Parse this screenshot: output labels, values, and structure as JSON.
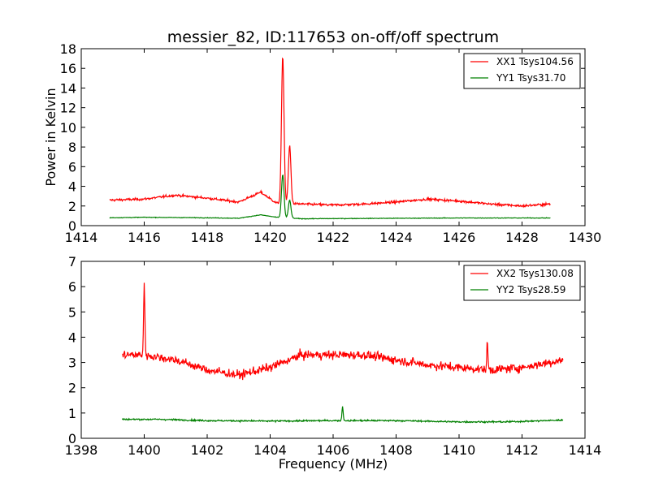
{
  "chart_data": [
    {
      "type": "line",
      "title": "messier_82, ID:117653 on-off/off spectrum",
      "xlabel": "",
      "ylabel": "Power in Kelvin",
      "xlim": [
        1414,
        1430
      ],
      "ylim": [
        0,
        18
      ],
      "xticks": [
        1414,
        1416,
        1418,
        1420,
        1422,
        1424,
        1426,
        1428,
        1430
      ],
      "yticks": [
        0,
        2,
        4,
        6,
        8,
        10,
        12,
        14,
        16,
        18
      ],
      "grid": false,
      "legend": "top-right",
      "series": [
        {
          "name": "XX1 Tsys104.56",
          "color": "#ff0000",
          "x_range": [
            1414.9,
            1428.9
          ],
          "baseline": [
            [
              1414.9,
              2.6
            ],
            [
              1416.0,
              2.7
            ],
            [
              1417.0,
              3.1
            ],
            [
              1418.0,
              2.8
            ],
            [
              1419.0,
              2.4
            ],
            [
              1419.7,
              3.4
            ],
            [
              1420.2,
              2.3
            ],
            [
              1421.0,
              2.2
            ],
            [
              1422.0,
              2.1
            ],
            [
              1423.0,
              2.2
            ],
            [
              1424.0,
              2.4
            ],
            [
              1425.0,
              2.7
            ],
            [
              1426.0,
              2.5
            ],
            [
              1427.0,
              2.2
            ],
            [
              1428.0,
              2.0
            ],
            [
              1428.9,
              2.2
            ]
          ],
          "peaks": [
            [
              1420.4,
              17.2,
              0.04
            ],
            [
              1420.62,
              8.1,
              0.04
            ]
          ],
          "noise": 0.12
        },
        {
          "name": "YY1 Tsys31.70",
          "color": "#008000",
          "x_range": [
            1414.9,
            1428.9
          ],
          "baseline": [
            [
              1414.9,
              0.8
            ],
            [
              1416.0,
              0.85
            ],
            [
              1418.0,
              0.8
            ],
            [
              1419.0,
              0.75
            ],
            [
              1419.7,
              1.1
            ],
            [
              1420.2,
              0.85
            ],
            [
              1421.0,
              0.7
            ],
            [
              1424.0,
              0.75
            ],
            [
              1426.0,
              0.78
            ],
            [
              1428.9,
              0.78
            ]
          ],
          "peaks": [
            [
              1420.4,
              5.2,
              0.04
            ],
            [
              1420.62,
              2.6,
              0.04
            ]
          ],
          "noise": 0.03
        }
      ]
    },
    {
      "type": "line",
      "title": "",
      "xlabel": "Frequency (MHz)",
      "ylabel": "",
      "xlim": [
        1398,
        1414
      ],
      "ylim": [
        0,
        7
      ],
      "xticks": [
        1398,
        1400,
        1402,
        1404,
        1406,
        1408,
        1410,
        1412,
        1414
      ],
      "yticks": [
        0,
        1,
        2,
        3,
        4,
        5,
        6,
        7
      ],
      "grid": false,
      "legend": "top-right",
      "series": [
        {
          "name": "XX2 Tsys130.08",
          "color": "#ff0000",
          "x_range": [
            1399.3,
            1413.3
          ],
          "baseline": [
            [
              1399.3,
              3.3
            ],
            [
              1400.0,
              3.3
            ],
            [
              1401.0,
              3.1
            ],
            [
              1402.0,
              2.7
            ],
            [
              1403.0,
              2.5
            ],
            [
              1404.0,
              2.8
            ],
            [
              1405.0,
              3.3
            ],
            [
              1406.0,
              3.3
            ],
            [
              1407.0,
              3.3
            ],
            [
              1408.0,
              3.1
            ],
            [
              1409.0,
              2.9
            ],
            [
              1410.0,
              2.8
            ],
            [
              1411.0,
              2.7
            ],
            [
              1412.0,
              2.8
            ],
            [
              1413.3,
              3.1
            ]
          ],
          "peaks": [
            [
              1400.0,
              6.1,
              0.02
            ],
            [
              1410.9,
              3.7,
              0.02
            ]
          ],
          "noise": 0.17
        },
        {
          "name": "YY2 Tsys28.59",
          "color": "#008000",
          "x_range": [
            1399.3,
            1413.3
          ],
          "baseline": [
            [
              1399.3,
              0.75
            ],
            [
              1400.5,
              0.75
            ],
            [
              1402.0,
              0.7
            ],
            [
              1404.0,
              0.68
            ],
            [
              1406.0,
              0.7
            ],
            [
              1408.0,
              0.7
            ],
            [
              1410.0,
              0.65
            ],
            [
              1411.5,
              0.65
            ],
            [
              1413.3,
              0.72
            ]
          ],
          "peaks": [
            [
              1406.3,
              1.25,
              0.02
            ]
          ],
          "noise": 0.03
        }
      ]
    }
  ]
}
